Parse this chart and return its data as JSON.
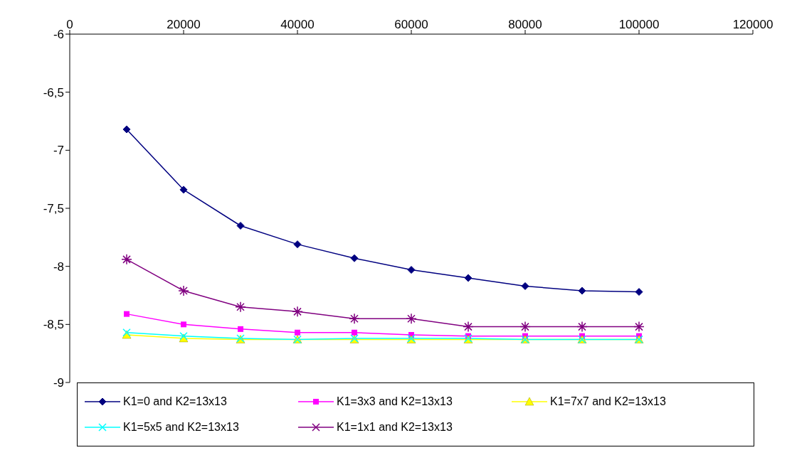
{
  "chart_data": {
    "type": "line",
    "x": [
      10000,
      20000,
      30000,
      40000,
      50000,
      60000,
      70000,
      80000,
      90000,
      100000
    ],
    "xlim": [
      0,
      120000
    ],
    "xticks": [
      0,
      20000,
      40000,
      60000,
      80000,
      100000,
      120000
    ],
    "ylim": [
      -9,
      -6
    ],
    "yticks": [
      {
        "value": -9,
        "label": "-9"
      },
      {
        "value": -8.5,
        "label": "-8,5"
      },
      {
        "value": -8,
        "label": "-8"
      },
      {
        "value": -7.5,
        "label": "-7,5"
      },
      {
        "value": -7,
        "label": "-7"
      },
      {
        "value": -6.5,
        "label": "-6,5"
      },
      {
        "value": -6,
        "label": "-6"
      }
    ],
    "grid": false,
    "legend": "bottom",
    "line_style": "solid",
    "series": [
      {
        "name": "K1=0 and K2=13x13",
        "color": "#000080",
        "marker": "diamond",
        "values": [
          -6.82,
          -7.34,
          -7.65,
          -7.81,
          -7.93,
          -8.03,
          -8.1,
          -8.17,
          -8.21,
          -8.22
        ]
      },
      {
        "name": "K1=3x3 and K2=13x13",
        "color": "#ff00ff",
        "marker": "square",
        "values": [
          -8.41,
          -8.5,
          -8.54,
          -8.57,
          -8.57,
          -8.59,
          -8.6,
          -8.6,
          -8.6,
          -8.6
        ]
      },
      {
        "name": "K1=7x7 and K2=13x13",
        "color": "#ffff00",
        "marker": "triangle",
        "values": [
          -8.59,
          -8.62,
          -8.63,
          -8.63,
          -8.63,
          -8.63,
          -8.63,
          -8.63,
          -8.63,
          -8.63
        ]
      },
      {
        "name": "K1=5x5 and K2=13x13",
        "color": "#00ffff",
        "marker": "cross",
        "values": [
          -8.57,
          -8.6,
          -8.62,
          -8.63,
          -8.62,
          -8.62,
          -8.62,
          -8.63,
          -8.63,
          -8.63
        ]
      },
      {
        "name": "K1=1x1 and K2=13x13",
        "color": "#800080",
        "marker": "cross",
        "values": [
          -7.94,
          -8.21,
          -8.35,
          -8.39,
          -8.45,
          -8.45,
          -8.52,
          -8.52,
          -8.52,
          -8.52
        ]
      }
    ]
  }
}
